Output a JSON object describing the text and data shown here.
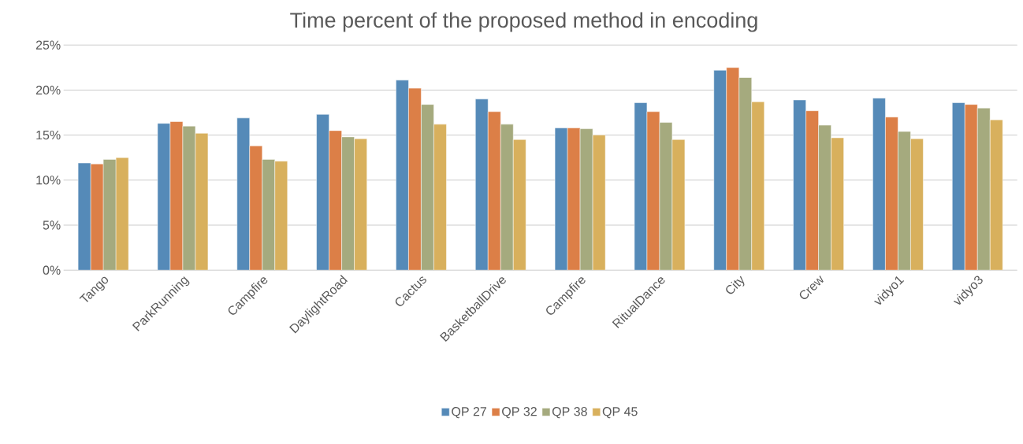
{
  "chart_data": {
    "type": "bar",
    "title": "Time percent of the proposed method in encoding",
    "categories": [
      "Tango",
      "ParkRunning",
      "Campfire",
      "DaylightRoad",
      "Cactus",
      "BasketballDrive",
      "Campfire",
      "RitualDance",
      "City",
      "Crew",
      "vidyo1",
      "vidyo3"
    ],
    "series": [
      {
        "name": "QP 27",
        "color": "#558ab8",
        "values": [
          11.9,
          16.3,
          16.9,
          17.3,
          21.1,
          19.0,
          15.8,
          18.6,
          22.2,
          18.9,
          19.1,
          18.6
        ]
      },
      {
        "name": "QP 32",
        "color": "#dc7f47",
        "values": [
          11.8,
          16.5,
          13.8,
          15.5,
          20.2,
          17.6,
          15.8,
          17.6,
          22.5,
          17.7,
          17.0,
          18.4
        ]
      },
      {
        "name": "QP 38",
        "color": "#a5aa7e",
        "values": [
          12.3,
          16.0,
          12.3,
          14.8,
          18.4,
          16.2,
          15.7,
          16.4,
          21.4,
          16.1,
          15.4,
          18.0
        ]
      },
      {
        "name": "QP 45",
        "color": "#d8b05d",
        "values": [
          12.5,
          15.2,
          12.1,
          14.6,
          16.2,
          14.5,
          15.0,
          14.5,
          18.7,
          14.7,
          14.6,
          16.7
        ]
      }
    ],
    "ylim": [
      0,
      25
    ],
    "yticks": [
      {
        "value": 0,
        "label": "0%"
      },
      {
        "value": 5,
        "label": "5%"
      },
      {
        "value": 10,
        "label": "10%"
      },
      {
        "value": 15,
        "label": "15%"
      },
      {
        "value": 20,
        "label": "20%"
      },
      {
        "value": 25,
        "label": "25%"
      }
    ],
    "grid": "y",
    "legend": "bottom"
  }
}
